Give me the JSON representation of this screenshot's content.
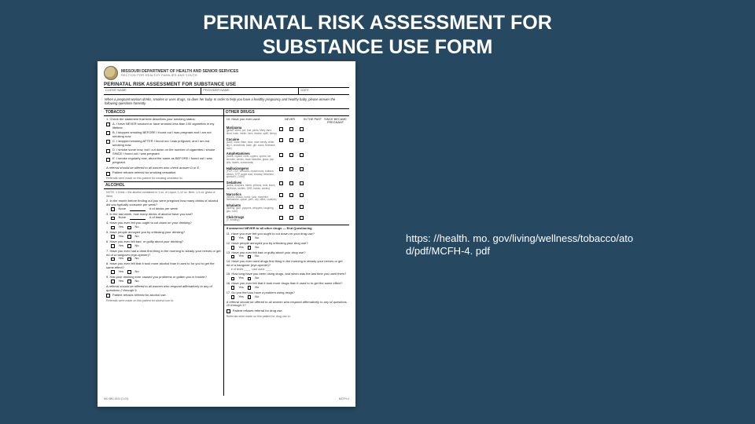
{
  "slide": {
    "title_line1": "PERINATAL RISK ASSESSMENT FOR",
    "title_line2": "SUBSTANCE USE FORM",
    "url_text": "https: //health. mo. gov/living/wellness/tobacco/ato d/pdf/MCFH-4. pdf",
    "background_color": "#274861"
  },
  "form": {
    "dept_line1": "MISSOURI  DEPARTMENT OF HEALTH AND SENIOR SERVICES",
    "dept_line2": "SECTION FOR HEALTHY FAMILIES AND YOUTH",
    "form_title": "PERINATAL RISK ASSESSMENT FOR SUBSTANCE USE",
    "header_cells": [
      "CLIENT NAME",
      "PROVIDER NAME",
      "DATE"
    ],
    "intro": "When a pregnant woman drinks, smokes or uses drugs, so does her baby. In order to help you have a healthy pregnancy and healthy baby, please answer the following questions honestly.",
    "tobacco_header": "TOBACCO",
    "tobacco_prompt": "1. Check the statement that best describes your smoking status:",
    "tobacco_opts": [
      "A. I have NEVER smoked or have smoked less than 100 cigarettes in my lifetime.",
      "B. I stopped smoking BEFORE I found out I was pregnant and I am not smoking now.",
      "C. I stopped smoking AFTER I found out I was pregnant, and I am not smoking now.",
      "D. I smoke some now, but I cut down on the number of cigarettes I smoke SINCE I found out I was pregnant.",
      "E. I smoke regularly now, about the same as BEFORE I found out I was pregnant."
    ],
    "tobacco_referral": "A referral should be offered to all women who check answer D or E.",
    "tobacco_refusal": "Patient refuses referral for smoking cessation.",
    "tobacco_notes": "Referrals were made on this patient for smoking cessation to:",
    "alcohol_header": "ALCOHOL",
    "alcohol_note": "NOTE: 1 Drink = the alcohol contained in 1 oz. of Liquor, 1-12 oz. Beer, 1-5 oz. glass of Wine",
    "alcohol_qs": [
      "2. In the month before finding out you were pregnant how many drinks of alcohol did you typically consume per week?",
      "3. In the last week, how many drinks of alcohol have you had?",
      "4. Have you ever felt you ought to cut down on your drinking?",
      "5. Have people annoyed you by criticizing your drinking?",
      "6. Have you ever felt bad, or guilty about your drinking?",
      "7. Have you ever had a drink first thing in the morning to steady your nerves or get rid of a hangover (eye-opener)?",
      "8. Have you ever felt that it took more alcohol than it used to for you to get the same effect?",
      "9. Has your drinking ever caused you problems or gotten you in trouble?"
    ],
    "none_label": "None",
    "drinks_label": "# of drinks per week",
    "times_label": "# of times",
    "yes": "Yes",
    "no": "No",
    "alc_referral": "A referral should be offered to all women who respond affirmatively to any of questions 2 through 9.",
    "alc_refusal": "Patient refuses referral for alcohol use.",
    "alc_notes": "Referrals were made on this patient for alcohol use to:",
    "other_header": "OTHER DRUGS",
    "other_prompt": "10. Have you ever used:",
    "cols": [
      "NEVER",
      "IN THE PAST",
      "SINCE BECAME PREGNANT"
    ],
    "drugs": [
      {
        "n": "Marijuana",
        "d": "(grass, weed, pot, bud, joints, Mary Jane, blunt, hash, reefer, herb, doobie, spliff, hemp)"
      },
      {
        "n": "Cocaine",
        "d": "(coke, snow, flake, blow, nose candy, white, big C, snowbirds, base, girl, crack, freebase, rock)"
      },
      {
        "n": "Amphetamines",
        "d": "(crank, crystal, meth, uppers, speed, ice, bennies, dexies, black beauties, glass, pep pills, hearts, crossroads)"
      },
      {
        "n": "Hallucinogens",
        "d": "(PCP, LSD, shrooms, mushrooms, buttons, cactus, STP, angel dust, ecstasy, ketamine, special K, DXM)"
      },
      {
        "n": "Sedatives",
        "d": "(ludes, downers, barbs, yellows, reds, blues, rainbows, roofies, GHB, tranks, xanies)"
      },
      {
        "n": "Narcotics",
        "d": "(heroin, smack, horse, junk, morphine, methadone, opium, perc, oxy, vikes, codeine)"
      },
      {
        "n": "Inhalants",
        "d": "(huffing, glue, poppers, whippets, laughing gas, rush)"
      },
      {
        "n": "Club Drugs",
        "d": "(X, ecstasy)"
      }
    ],
    "end_q_header": "If answered NEVER to all other drugs — End Questioning",
    "end_qs": [
      "11. Have you ever felt you ought to cut down on your drug use?",
      "12. Have people annoyed you by criticizing your drug use?",
      "13. Have you ever felt bad or guilty about your drug use?",
      "14. Have you ever used drugs first thing in the morning to steady your nerves or get rid of a hangover (eye-opener)?",
      "15. How long have you been using drugs, and when was the last time you used them?",
      "16. Have you ever felt that it took more drugs than it used to to get the same effect?",
      "17. Do you feel you have a problem using drugs?"
    ],
    "other_referral": "A referral should be offered to all women who respond affirmatively to any of questions 10 through 17.",
    "other_refusal": "Patient refuses referral for drug use.",
    "other_notes": "Referrals were made on this patient for drug use to:",
    "footer_left": "MO 580-1811 (1-03)",
    "footer_right": "MCFH-4"
  }
}
